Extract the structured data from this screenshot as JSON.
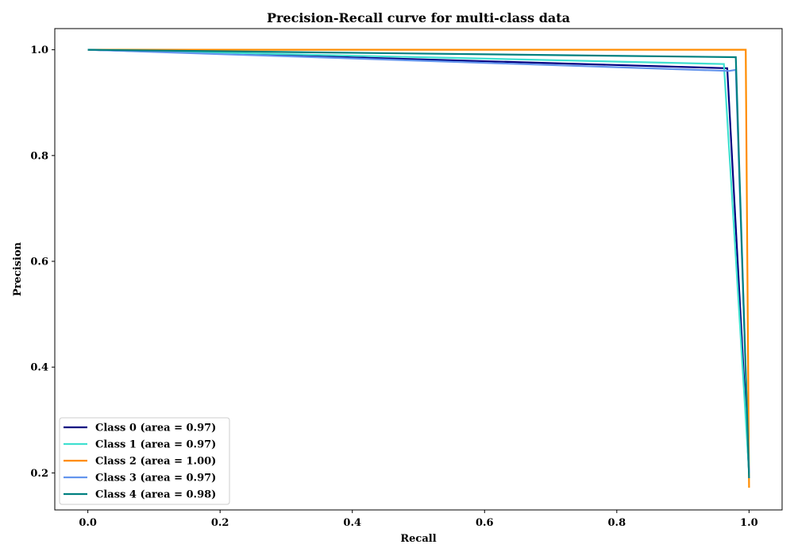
{
  "chart_data": {
    "type": "line",
    "title": "Precision-Recall curve for multi-class data",
    "xlabel": "Recall",
    "ylabel": "Precision",
    "xlim": [
      -0.05,
      1.05
    ],
    "ylim": [
      0.13,
      1.04
    ],
    "xticks": [
      "0.0",
      "0.2",
      "0.4",
      "0.6",
      "0.8",
      "1.0"
    ],
    "yticks": [
      "0.2",
      "0.4",
      "0.6",
      "0.8",
      "1.0"
    ],
    "grid": false,
    "legend_position": "lower-left",
    "series": [
      {
        "name": "Class 0 (area = 0.97)",
        "color": "#000080",
        "points": [
          [
            0.0,
            1.0
          ],
          [
            0.967,
            0.965
          ],
          [
            1.0,
            0.2
          ]
        ]
      },
      {
        "name": "Class 1 (area = 0.97)",
        "color": "#40e0d0",
        "points": [
          [
            0.0,
            1.0
          ],
          [
            0.962,
            0.973
          ],
          [
            1.0,
            0.2
          ]
        ]
      },
      {
        "name": "Class 2 (area = 1.00)",
        "color": "#ff8c00",
        "points": [
          [
            0.0,
            1.0
          ],
          [
            0.995,
            1.0
          ],
          [
            1.0,
            0.172
          ]
        ]
      },
      {
        "name": "Class 3 (area = 0.97)",
        "color": "#6495ed",
        "points": [
          [
            0.0,
            1.0
          ],
          [
            0.97,
            0.96
          ],
          [
            0.98,
            0.962
          ],
          [
            1.0,
            0.2
          ]
        ]
      },
      {
        "name": "Class 4 (area = 0.98)",
        "color": "#008080",
        "points": [
          [
            0.0,
            1.0
          ],
          [
            0.98,
            0.986
          ],
          [
            1.0,
            0.19
          ]
        ]
      }
    ]
  }
}
